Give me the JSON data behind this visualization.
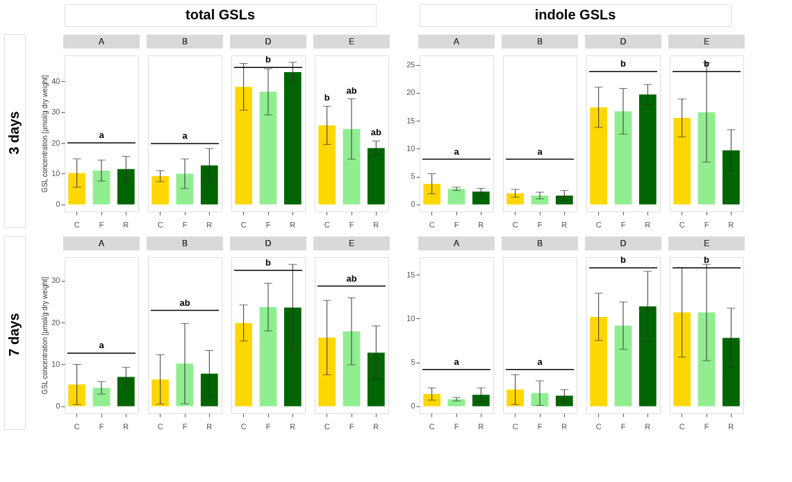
{
  "chart_data": [
    {
      "type": "other",
      "title": "total GSLs"
    },
    {
      "type": "other",
      "title": "indole GSLs"
    },
    {
      "type": "other",
      "ylabel": "3 days"
    },
    {
      "type": "bar",
      "title": "A",
      "ylabel": "GSL concentration [µmol/g dry weight]",
      "categories": [
        "C",
        "F",
        "R"
      ],
      "values": [
        10.2,
        11.0,
        11.5
      ],
      "errors": [
        4.6,
        3.4,
        4.1
      ],
      "colors": [
        "#ffd700",
        "#90ee90",
        "#006400"
      ],
      "ylim": [
        -2.3,
        48.4
      ],
      "yticks": [
        0,
        10,
        20,
        30,
        40
      ],
      "ref_lines": [
        {
          "axis": "y",
          "value": 20.0,
          "label": "a"
        }
      ]
    },
    {
      "type": "bar",
      "title": "B",
      "categories": [
        "C",
        "F",
        "R"
      ],
      "values": [
        9.2,
        10.0,
        12.7
      ],
      "errors": [
        1.8,
        4.8,
        5.5
      ],
      "colors": [
        "#ffd700",
        "#90ee90",
        "#006400"
      ],
      "ylim": [
        -2.3,
        48.4
      ],
      "yticks": [
        0,
        10,
        20,
        30,
        40
      ],
      "tick_labels": "x",
      "ref_lines": [
        {
          "axis": "y",
          "value": 19.8,
          "label": "a"
        }
      ]
    },
    {
      "type": "bar",
      "title": "D",
      "categories": [
        "C",
        "F",
        "R"
      ],
      "values": [
        38.2,
        36.6,
        43.0
      ],
      "errors": [
        7.6,
        7.5,
        3.2
      ],
      "colors": [
        "#ffd700",
        "#90ee90",
        "#006400"
      ],
      "ylim": [
        -2.3,
        48.4
      ],
      "yticks": [
        0,
        10,
        20,
        30,
        40
      ],
      "tick_labels": "x",
      "ref_lines": [
        {
          "axis": "y",
          "value": 44.5,
          "label": "b"
        }
      ]
    },
    {
      "type": "bar",
      "title": "E",
      "categories": [
        "C",
        "F",
        "R"
      ],
      "values": [
        25.7,
        24.5,
        18.3
      ],
      "errors": [
        6.2,
        9.8,
        2.3
      ],
      "colors": [
        "#ffd700",
        "#90ee90",
        "#006400"
      ],
      "ylim": [
        -2.3,
        48.4
      ],
      "yticks": [
        0,
        10,
        20,
        30,
        40
      ],
      "tick_labels": "x",
      "annotations": [
        "b",
        "ab",
        "ab"
      ]
    },
    {
      "type": "bar",
      "title": "A",
      "categories": [
        "C",
        "F",
        "R"
      ],
      "values": [
        3.7,
        2.8,
        2.3
      ],
      "errors": [
        1.8,
        0.3,
        0.6
      ],
      "colors": [
        "#ffd700",
        "#90ee90",
        "#006400"
      ],
      "ylim": [
        -1.27,
        26.7
      ],
      "yticks": [
        0,
        5,
        10,
        15,
        20,
        25
      ],
      "ref_lines": [
        {
          "axis": "y",
          "value": 8.1,
          "label": "a"
        }
      ]
    },
    {
      "type": "bar",
      "title": "B",
      "categories": [
        "C",
        "F",
        "R"
      ],
      "values": [
        2.0,
        1.6,
        1.6
      ],
      "errors": [
        0.7,
        0.6,
        0.9
      ],
      "colors": [
        "#ffd700",
        "#90ee90",
        "#006400"
      ],
      "ylim": [
        -1.27,
        26.7
      ],
      "yticks": [
        0,
        5,
        10,
        15,
        20,
        25
      ],
      "tick_labels": "x",
      "ref_lines": [
        {
          "axis": "y",
          "value": 8.1,
          "label": "a"
        }
      ]
    },
    {
      "type": "bar",
      "title": "D",
      "categories": [
        "C",
        "F",
        "R"
      ],
      "values": [
        17.4,
        16.7,
        19.7
      ],
      "errors": [
        3.6,
        4.1,
        1.8
      ],
      "colors": [
        "#ffd700",
        "#90ee90",
        "#006400"
      ],
      "ylim": [
        -1.27,
        26.7
      ],
      "yticks": [
        0,
        5,
        10,
        15,
        20,
        25
      ],
      "tick_labels": "x",
      "ref_lines": [
        {
          "axis": "y",
          "value": 23.8,
          "label": "b"
        }
      ]
    },
    {
      "type": "bar",
      "title": "E",
      "categories": [
        "C",
        "F",
        "R"
      ],
      "values": [
        15.5,
        16.5,
        9.7
      ],
      "errors": [
        3.4,
        8.9,
        3.7
      ],
      "colors": [
        "#ffd700",
        "#90ee90",
        "#006400"
      ],
      "ylim": [
        -1.27,
        26.7
      ],
      "yticks": [
        0,
        5,
        10,
        15,
        20,
        25
      ],
      "tick_labels": "x",
      "ref_lines": [
        {
          "axis": "y",
          "value": 23.8,
          "label": "b"
        }
      ]
    },
    {
      "type": "other",
      "ylabel": "7 days"
    },
    {
      "type": "bar",
      "title": "A",
      "ylabel": "GSL concentration [µmol/g dry weight]",
      "categories": [
        "C",
        "F",
        "R"
      ],
      "values": [
        5.2,
        4.4,
        7.0
      ],
      "errors": [
        4.8,
        1.5,
        2.3
      ],
      "colors": [
        "#ffd700",
        "#90ee90",
        "#006400"
      ],
      "ylim": [
        -1.7,
        35.6
      ],
      "yticks": [
        0,
        10,
        20,
        30
      ],
      "ref_lines": [
        {
          "axis": "y",
          "value": 12.7,
          "label": "a"
        }
      ]
    },
    {
      "type": "bar",
      "title": "B",
      "categories": [
        "C",
        "F",
        "R"
      ],
      "values": [
        6.4,
        10.2,
        7.8
      ],
      "errors": [
        5.9,
        9.6,
        5.5
      ],
      "colors": [
        "#ffd700",
        "#90ee90",
        "#006400"
      ],
      "ylim": [
        -1.7,
        35.6
      ],
      "yticks": [
        0,
        10,
        20,
        30
      ],
      "tick_labels": "x",
      "ref_lines": [
        {
          "axis": "y",
          "value": 22.9,
          "label": "ab"
        }
      ]
    },
    {
      "type": "bar",
      "title": "D",
      "categories": [
        "C",
        "F",
        "R"
      ],
      "values": [
        19.9,
        23.7,
        23.6
      ],
      "errors": [
        4.3,
        5.7,
        10.3
      ],
      "colors": [
        "#ffd700",
        "#90ee90",
        "#006400"
      ],
      "ylim": [
        -1.7,
        35.6
      ],
      "yticks": [
        0,
        10,
        20,
        30
      ],
      "tick_labels": "x",
      "ref_lines": [
        {
          "axis": "y",
          "value": 32.5,
          "label": "b"
        }
      ]
    },
    {
      "type": "bar",
      "title": "E",
      "categories": [
        "C",
        "F",
        "R"
      ],
      "values": [
        16.4,
        17.9,
        12.8
      ],
      "errors": [
        8.9,
        8.0,
        6.4
      ],
      "colors": [
        "#ffd700",
        "#90ee90",
        "#006400"
      ],
      "ylim": [
        -1.7,
        35.6
      ],
      "yticks": [
        0,
        10,
        20,
        30
      ],
      "tick_labels": "x",
      "ref_lines": [
        {
          "axis": "y",
          "value": 28.7,
          "label": "ab"
        }
      ]
    },
    {
      "type": "bar",
      "title": "A",
      "categories": [
        "C",
        "F",
        "R"
      ],
      "values": [
        1.4,
        0.8,
        1.3
      ],
      "errors": [
        0.7,
        0.2,
        0.8
      ],
      "colors": [
        "#ffd700",
        "#90ee90",
        "#006400"
      ],
      "ylim": [
        -0.81,
        17.0
      ],
      "yticks": [
        0,
        5,
        10,
        15
      ],
      "ref_lines": [
        {
          "axis": "y",
          "value": 4.2,
          "label": "a"
        }
      ]
    },
    {
      "type": "bar",
      "title": "B",
      "categories": [
        "C",
        "F",
        "R"
      ],
      "values": [
        1.9,
        1.5,
        1.2
      ],
      "errors": [
        1.7,
        1.4,
        0.7
      ],
      "colors": [
        "#ffd700",
        "#90ee90",
        "#006400"
      ],
      "ylim": [
        -0.81,
        17.0
      ],
      "yticks": [
        0,
        5,
        10,
        15
      ],
      "tick_labels": "x",
      "ref_lines": [
        {
          "axis": "y",
          "value": 4.2,
          "label": "a"
        }
      ]
    },
    {
      "type": "bar",
      "title": "D",
      "categories": [
        "C",
        "F",
        "R"
      ],
      "values": [
        10.2,
        9.2,
        11.4
      ],
      "errors": [
        2.7,
        2.7,
        4.0
      ],
      "colors": [
        "#ffd700",
        "#90ee90",
        "#006400"
      ],
      "ylim": [
        -0.81,
        17.0
      ],
      "yticks": [
        0,
        5,
        10,
        15
      ],
      "tick_labels": "x",
      "ref_lines": [
        {
          "axis": "y",
          "value": 15.8,
          "label": "b"
        }
      ]
    },
    {
      "type": "bar",
      "title": "E",
      "categories": [
        "C",
        "F",
        "R"
      ],
      "values": [
        10.7,
        10.7,
        7.8
      ],
      "errors": [
        5.1,
        5.5,
        3.4
      ],
      "colors": [
        "#ffd700",
        "#90ee90",
        "#006400"
      ],
      "ylim": [
        -0.81,
        17.0
      ],
      "yticks": [
        0,
        5,
        10,
        15
      ],
      "tick_labels": "x",
      "ref_lines": [
        {
          "axis": "y",
          "value": 15.8,
          "label": "b"
        }
      ]
    }
  ]
}
